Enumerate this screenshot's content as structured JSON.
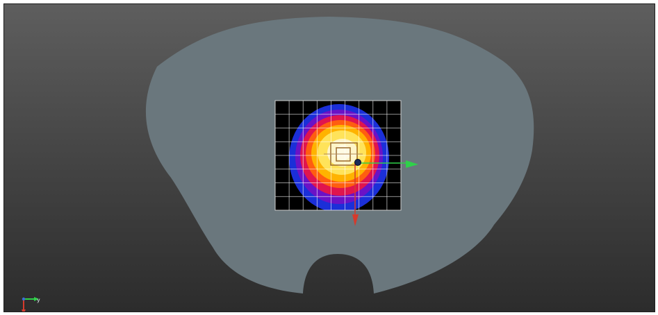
{
  "viewport": {
    "background_top": "#5e5e5e",
    "background_bottom": "#2c2c2c",
    "body_color": "#6a777d"
  },
  "dose_map": {
    "colormap": [
      "#000000",
      "#1a2fd6",
      "#6a12c8",
      "#e0164d",
      "#ff6a00",
      "#ffb300",
      "#ffe64d",
      "#fff8c0"
    ],
    "grid": true,
    "grid_color": "#ffffff"
  },
  "axes": {
    "x_axis_color": "#2fd14a",
    "y_axis_color": "#d63a2c"
  },
  "view_triad": {
    "y_label": "y",
    "x_color": "#2fd14a",
    "y_color": "#d63a2c",
    "z_color": "#3b6fd6"
  }
}
